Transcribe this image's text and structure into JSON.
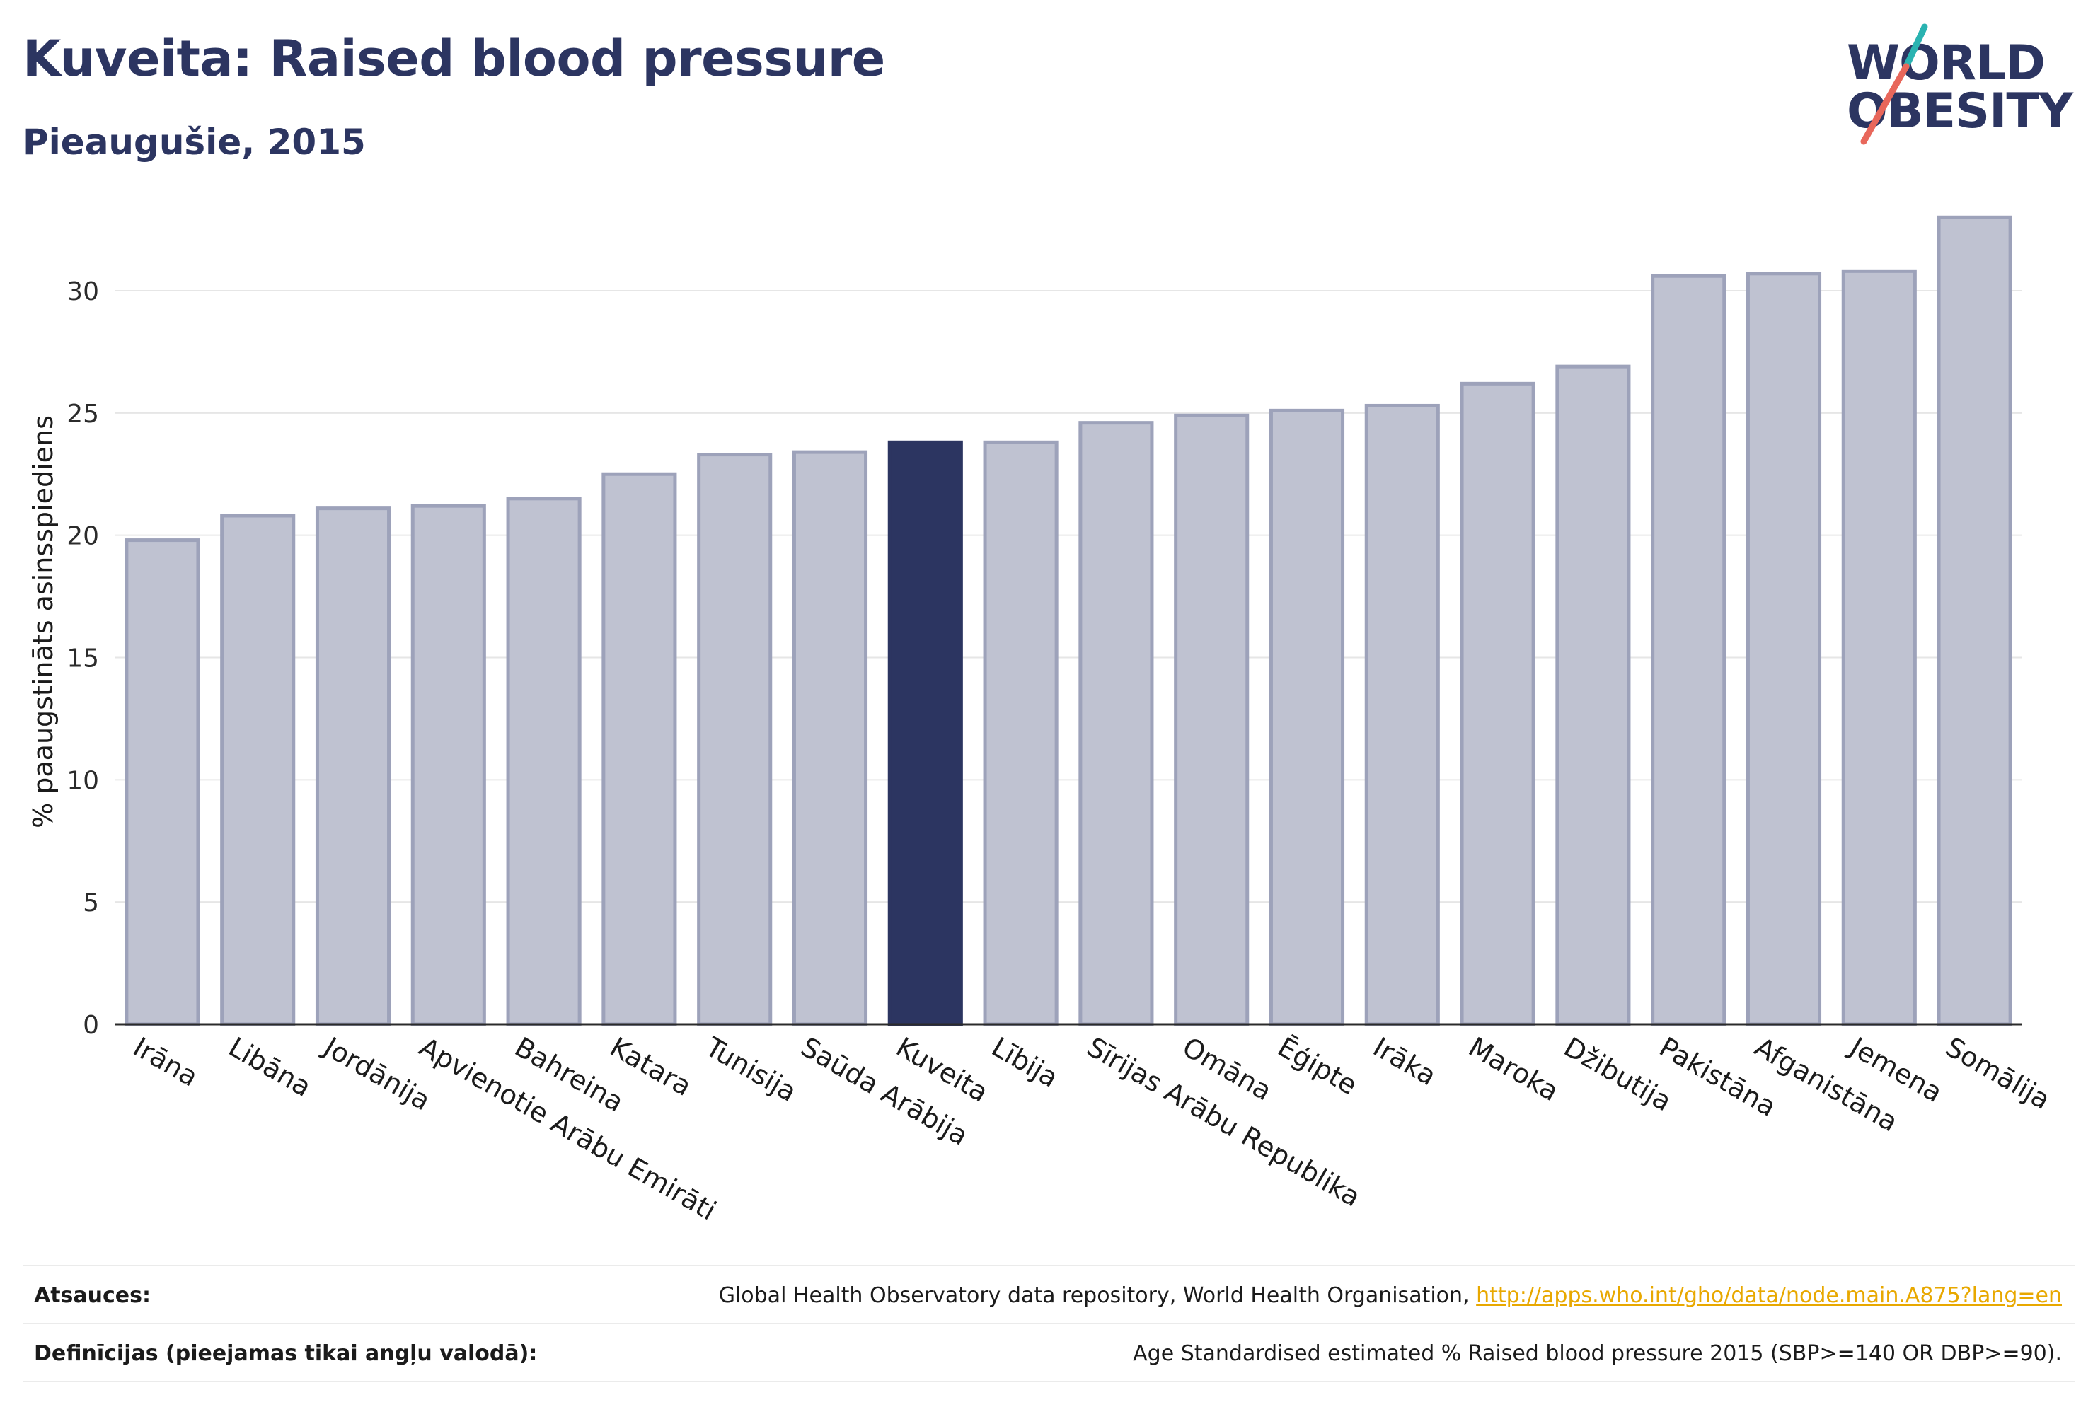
{
  "title": "Kuveita: Raised blood pressure",
  "subtitle": "Pieaugušie, 2015",
  "logo": {
    "line1": "WORLD",
    "line2": "OBESITY"
  },
  "colors": {
    "bar": "#bfc2d1",
    "bar_border": "#9da2ba",
    "highlight": "#2c3561",
    "axis": "#2b2b2b",
    "grid": "#e6e6e6"
  },
  "chart_data": {
    "type": "bar",
    "ylabel": "% paaugstināts asinsspiediens",
    "ylim": [
      0,
      33.5
    ],
    "yticks": [
      0,
      5,
      10,
      15,
      20,
      25,
      30
    ],
    "grid": true,
    "highlight": "Kuveita",
    "categories": [
      "Irāna",
      "Libāna",
      "Jordānija",
      "Apvienotie Arābu Emirāti",
      "Bahreina",
      "Katara",
      "Tunisija",
      "Saūda Arābija",
      "Kuveita",
      "Lībija",
      "Sīrijas Arābu Republika",
      "Omāna",
      "Ēģipte",
      "Irāka",
      "Maroka",
      "Džibutija",
      "Pakistāna",
      "Afganistāna",
      "Jemena",
      "Somālija"
    ],
    "values": [
      19.8,
      20.8,
      21.1,
      21.2,
      21.5,
      22.5,
      23.3,
      23.4,
      23.8,
      23.8,
      24.6,
      24.9,
      25.1,
      25.3,
      26.2,
      26.9,
      30.6,
      30.7,
      30.8,
      33.0
    ]
  },
  "footer": {
    "sources_label": "Atsauces:",
    "sources_text": "Global Health Observatory data repository, World Health Organisation,",
    "sources_link": "http://apps.who.int/gho/data/node.main.A875?lang=en",
    "definitions_label": "Definīcijas (pieejamas tikai angļu valodā):",
    "definitions_text": "Age Standardised estimated % Raised blood pressure 2015 (SBP>=140 OR DBP>=90)."
  }
}
